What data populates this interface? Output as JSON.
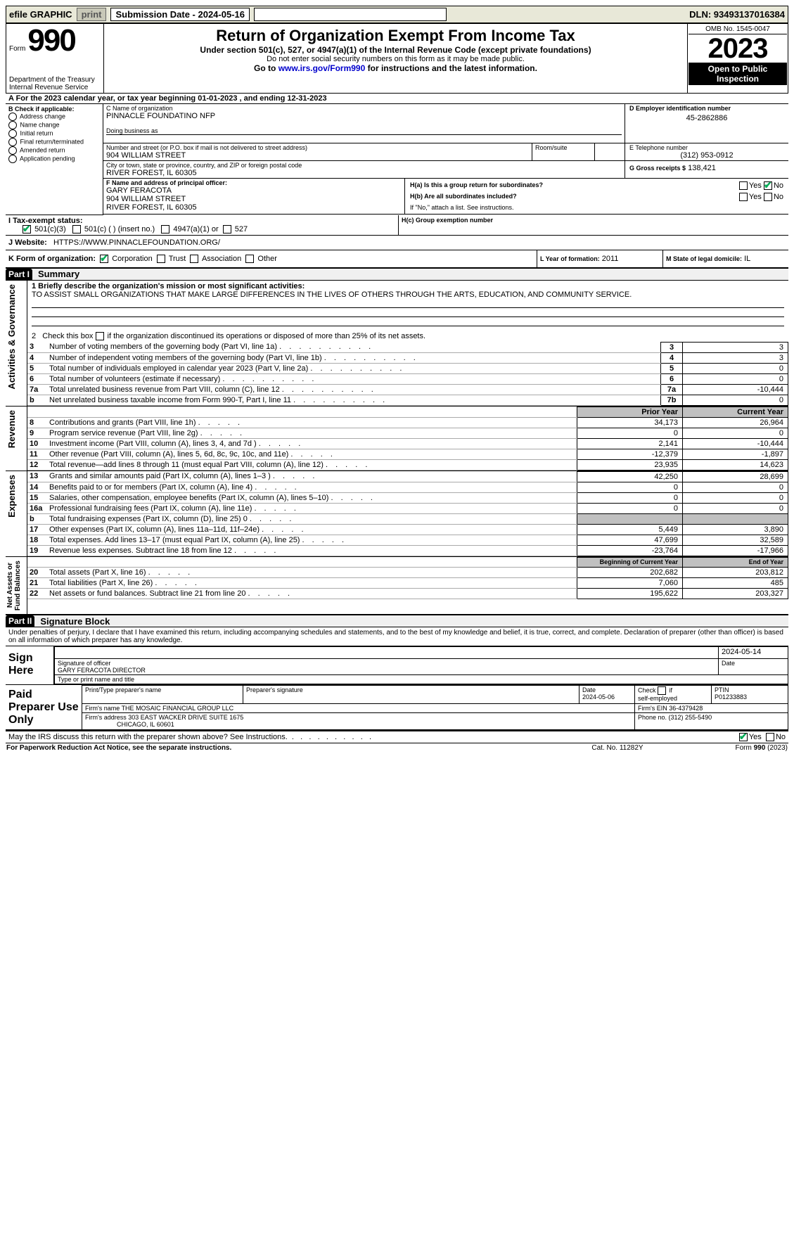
{
  "topbar": {
    "efile": "efile GRAPHIC",
    "print": "print",
    "submission_label": "Submission Date - 2024-05-16",
    "dln_label": "DLN: 93493137016384"
  },
  "header": {
    "form_word": "Form",
    "form_num": "990",
    "dept": "Department of the Treasury\nInternal Revenue Service",
    "title": "Return of Organization Exempt From Income Tax",
    "sub1": "Under section 501(c), 527, or 4947(a)(1) of the Internal Revenue Code (except private foundations)",
    "sub2": "Do not enter social security numbers on this form as it may be made public.",
    "sub3_pre": "Go to ",
    "sub3_link": "www.irs.gov/Form990",
    "sub3_post": " for instructions and the latest information.",
    "omb": "OMB No. 1545-0047",
    "year": "2023",
    "open_public": "Open to Public Inspection"
  },
  "lineA": {
    "text_pre": "A For the 2023 calendar year, or tax year beginning ",
    "begin": "01-01-2023",
    "mid": " , and ending ",
    "end": "12-31-2023"
  },
  "boxB": {
    "label": "B Check if applicable:",
    "items": [
      "Address change",
      "Name change",
      "Initial return",
      "Final return/terminated",
      "Amended return",
      "Application pending"
    ]
  },
  "boxC": {
    "name_label": "C Name of organization",
    "name": "PINNACLE FOUNDATINO NFP",
    "dba_label": "Doing business as",
    "street_label": "Number and street (or P.O. box if mail is not delivered to street address)",
    "room_label": "Room/suite",
    "street": "904 WILLIAM STREET",
    "city_label": "City or town, state or province, country, and ZIP or foreign postal code",
    "city": "RIVER FOREST, IL  60305"
  },
  "boxD": {
    "label": "D Employer identification number",
    "value": "45-2862886"
  },
  "boxE": {
    "label": "E Telephone number",
    "value": "(312) 953-0912"
  },
  "boxG": {
    "label": "G Gross receipts $",
    "value": "138,421"
  },
  "boxF": {
    "label": "F Name and address of principal officer:",
    "name": "GARY FERACOTA",
    "street": "904 WILLIAM STREET",
    "city": "RIVER FOREST, IL  60305"
  },
  "boxH": {
    "a": "H(a)  Is this a group return for subordinates?",
    "b": "H(b)  Are all subordinates included?",
    "b_note": "If \"No,\" attach a list. See instructions.",
    "c": "H(c)  Group exemption number ",
    "yes": "Yes",
    "no": "No"
  },
  "rowI": {
    "label": "I    Tax-exempt status:",
    "opt1": "501(c)(3)",
    "opt2": "501(c) (   ) (insert no.)",
    "opt3": "4947(a)(1) or",
    "opt4": "527"
  },
  "rowJ": {
    "label": "J    Website:",
    "value": "HTTPS://WWW.PINNACLEFOUNDATION.ORG/"
  },
  "rowK": {
    "label": "K Form of organization:",
    "opts": [
      "Corporation",
      "Trust",
      "Association",
      "Other"
    ]
  },
  "rowL": {
    "label": "L Year of formation:",
    "value": "2011"
  },
  "rowM": {
    "label": "M State of legal domicile:",
    "value": "IL"
  },
  "part1": {
    "bar": "Part I",
    "title": "Summary",
    "q1_label": "1   Briefly describe the organization's mission or most significant activities:",
    "q1_text": "TO ASSIST SMALL ORGANIZATIONS THAT MAKE LARGE DIFFERENCES IN THE LIVES OF OTHERS THROUGH THE ARTS, EDUCATION, AND COMMUNITY SERVICE.",
    "q2": "2   Check this box        if the organization discontinued its operations or disposed of more than 25% of its net assets.",
    "vlabels": {
      "ag": "Activities & Governance",
      "rev": "Revenue",
      "exp": "Expenses",
      "na": "Net Assets or\nFund Balances"
    },
    "ag_rows": [
      {
        "n": "3",
        "t": "Number of voting members of the governing body (Part VI, line 1a)",
        "k": "3",
        "v": "3"
      },
      {
        "n": "4",
        "t": "Number of independent voting members of the governing body (Part VI, line 1b)",
        "k": "4",
        "v": "3"
      },
      {
        "n": "5",
        "t": "Total number of individuals employed in calendar year 2023 (Part V, line 2a)",
        "k": "5",
        "v": "0"
      },
      {
        "n": "6",
        "t": "Total number of volunteers (estimate if necessary)",
        "k": "6",
        "v": "0"
      },
      {
        "n": "7a",
        "t": "Total unrelated business revenue from Part VIII, column (C), line 12",
        "k": "7a",
        "v": "-10,444"
      },
      {
        "n": "b",
        "t": "Net unrelated business taxable income from Form 990-T, Part I, line 11",
        "k": "7b",
        "v": "0"
      }
    ],
    "col_headers": {
      "prior": "Prior Year",
      "current": "Current Year",
      "begin": "Beginning of Current Year",
      "end": "End of Year"
    },
    "rev_rows": [
      {
        "n": "8",
        "t": "Contributions and grants (Part VIII, line 1h)",
        "p": "34,173",
        "c": "26,964"
      },
      {
        "n": "9",
        "t": "Program service revenue (Part VIII, line 2g)",
        "p": "0",
        "c": "0"
      },
      {
        "n": "10",
        "t": "Investment income (Part VIII, column (A), lines 3, 4, and 7d )",
        "p": "2,141",
        "c": "-10,444"
      },
      {
        "n": "11",
        "t": "Other revenue (Part VIII, column (A), lines 5, 6d, 8c, 9c, 10c, and 11e)",
        "p": "-12,379",
        "c": "-1,897"
      },
      {
        "n": "12",
        "t": "Total revenue—add lines 8 through 11 (must equal Part VIII, column (A), line 12)",
        "p": "23,935",
        "c": "14,623"
      }
    ],
    "exp_rows": [
      {
        "n": "13",
        "t": "Grants and similar amounts paid (Part IX, column (A), lines 1–3 )",
        "p": "42,250",
        "c": "28,699"
      },
      {
        "n": "14",
        "t": "Benefits paid to or for members (Part IX, column (A), line 4)",
        "p": "0",
        "c": "0"
      },
      {
        "n": "15",
        "t": "Salaries, other compensation, employee benefits (Part IX, column (A), lines 5–10)",
        "p": "0",
        "c": "0"
      },
      {
        "n": "16a",
        "t": "Professional fundraising fees (Part IX, column (A), line 11e)",
        "p": "0",
        "c": "0"
      },
      {
        "n": "b",
        "t": "Total fundraising expenses (Part IX, column (D), line 25) 0",
        "p": "",
        "c": "",
        "gray": true
      },
      {
        "n": "17",
        "t": "Other expenses (Part IX, column (A), lines 11a–11d, 11f–24e)",
        "p": "5,449",
        "c": "3,890"
      },
      {
        "n": "18",
        "t": "Total expenses. Add lines 13–17 (must equal Part IX, column (A), line 25)",
        "p": "47,699",
        "c": "32,589"
      },
      {
        "n": "19",
        "t": "Revenue less expenses. Subtract line 18 from line 12",
        "p": "-23,764",
        "c": "-17,966"
      }
    ],
    "na_rows": [
      {
        "n": "20",
        "t": "Total assets (Part X, line 16)",
        "p": "202,682",
        "c": "203,812"
      },
      {
        "n": "21",
        "t": "Total liabilities (Part X, line 26)",
        "p": "7,060",
        "c": "485"
      },
      {
        "n": "22",
        "t": "Net assets or fund balances. Subtract line 21 from line 20",
        "p": "195,622",
        "c": "203,327"
      }
    ]
  },
  "part2": {
    "bar": "Part II",
    "title": "Signature Block",
    "decl": "Under penalties of perjury, I declare that I have examined this return, including accompanying schedules and statements, and to the best of my knowledge and belief, it is true, correct, and complete. Declaration of preparer (other than officer) is based on all information of which preparer has any knowledge.",
    "sign_here": "Sign Here",
    "sig_officer_label": "Signature of officer",
    "date_label": "Date",
    "sig_date": "2024-05-14",
    "officer_name": "GARY FERACOTA  DIRECTOR",
    "type_label": "Type or print name and title",
    "paid": "Paid Preparer Use Only",
    "prep_name_label": "Print/Type preparer's name",
    "prep_sig_label": "Preparer's signature",
    "prep_date": "2024-05-06",
    "check_self": "Check        if self-employed",
    "ptin_label": "PTIN",
    "ptin": "P01233883",
    "firm_name_label": "Firm's name  ",
    "firm_name": "THE MOSAIC FINANCIAL GROUP LLC",
    "firm_ein_label": "Firm's EIN  ",
    "firm_ein": "36-4379428",
    "firm_addr_label": "Firm's address ",
    "firm_addr1": "303 EAST WACKER DRIVE SUITE 1675",
    "firm_addr2": "CHICAGO, IL  60601",
    "phone_label": "Phone no. ",
    "phone": "(312) 255-5490",
    "discuss": "May the IRS discuss this return with the preparer shown above? See Instructions.",
    "yes": "Yes",
    "no": "No"
  },
  "footer": {
    "left": "For Paperwork Reduction Act Notice, see the separate instructions.",
    "mid": "Cat. No. 11282Y",
    "right": "Form 990 (2023)"
  }
}
